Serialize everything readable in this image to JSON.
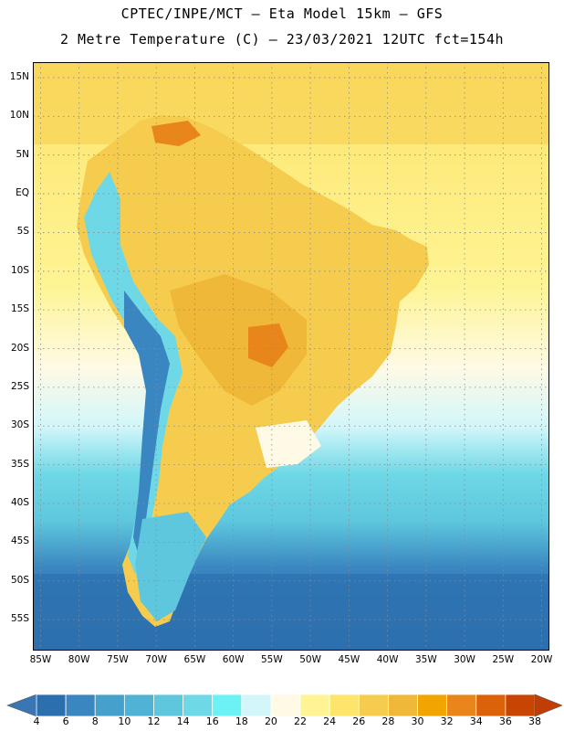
{
  "header": {
    "line1": "CPTEC/INPE/MCT –  Eta Model 15km – GFS",
    "line2": "2 Metre Temperature (C) – 23/03/2021 12UTC fct=154h"
  },
  "map": {
    "lon_range": [
      -86,
      -19
    ],
    "lat_range": [
      -59,
      17
    ],
    "lat_labels": [
      "15N",
      "10N",
      "5N",
      "EQ",
      "5S",
      "10S",
      "15S",
      "20S",
      "25S",
      "30S",
      "35S",
      "40S",
      "45S",
      "50S",
      "55S"
    ],
    "lat_values": [
      15,
      10,
      5,
      0,
      -5,
      -10,
      -15,
      -20,
      -25,
      -30,
      -35,
      -40,
      -45,
      -50,
      -55
    ],
    "lon_labels": [
      "85W",
      "80W",
      "75W",
      "70W",
      "65W",
      "60W",
      "55W",
      "50W",
      "45W",
      "40W",
      "35W",
      "30W",
      "25W",
      "20W"
    ],
    "lon_values": [
      -85,
      -80,
      -75,
      -70,
      -65,
      -60,
      -55,
      -50,
      -45,
      -40,
      -35,
      -30,
      -25,
      -20
    ]
  },
  "colorbar": {
    "labels": [
      "4",
      "6",
      "8",
      "10",
      "12",
      "14",
      "16",
      "18",
      "20",
      "22",
      "24",
      "26",
      "28",
      "30",
      "32",
      "34",
      "36",
      "38"
    ],
    "colors": [
      "#2c6fae",
      "#3a86c0",
      "#46a0cc",
      "#50b3d6",
      "#5ec7de",
      "#6ed8e6",
      "#6cf2f4",
      "#d2f6fa",
      "#fefae6",
      "#fef494",
      "#fde46a",
      "#f6cc4e",
      "#efb838",
      "#f2a400",
      "#e8861c",
      "#dc620a",
      "#c84402"
    ],
    "min_arrow_color": "#3a76b4",
    "max_arrow_color": "#c03e04"
  }
}
